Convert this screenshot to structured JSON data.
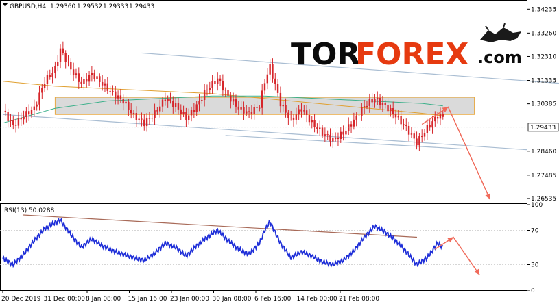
{
  "chart_data": [
    {
      "type": "candlestick",
      "symbol_label": "GBPUSD,H4",
      "ohlc": [
        "1.29360",
        "1.29532",
        "1.29333",
        "1.29433"
      ],
      "current_price": 1.29433,
      "current_price_label": "1.29433",
      "ylim": [
        1.2645,
        1.3455
      ],
      "y_ticks": [
        {
          "v": 1.34235,
          "label": "1.34235"
        },
        {
          "v": 1.3326,
          "label": "1.33260"
        },
        {
          "v": 1.3231,
          "label": "1.32310"
        },
        {
          "v": 1.31335,
          "label": "1.31335"
        },
        {
          "v": 1.30385,
          "label": "1.30385"
        },
        {
          "v": 1.2846,
          "label": "1.28460"
        },
        {
          "v": 1.27485,
          "label": "1.27485"
        },
        {
          "v": 1.26535,
          "label": "1.26535"
        }
      ],
      "x_labels": [
        "20 Dec 2019",
        "31 Dec 00:00",
        "8 Jan 08:00",
        "15 Jan 16:00",
        "23 Jan 00:00",
        "30 Jan 08:00",
        "6 Feb 16:00",
        "14 Feb 00:00",
        "21 Feb 08:00"
      ],
      "close_path": [
        [
          0,
          1.301
        ],
        [
          4,
          1.295
        ],
        [
          8,
          1.299
        ],
        [
          12,
          1.302
        ],
        [
          16,
          1.313
        ],
        [
          20,
          1.318
        ],
        [
          22,
          1.326
        ],
        [
          26,
          1.318
        ],
        [
          30,
          1.312
        ],
        [
          34,
          1.316
        ],
        [
          38,
          1.312
        ],
        [
          42,
          1.308
        ],
        [
          46,
          1.305
        ],
        [
          50,
          1.299
        ],
        [
          54,
          1.296
        ],
        [
          58,
          1.3
        ],
        [
          62,
          1.306
        ],
        [
          66,
          1.303
        ],
        [
          70,
          1.298
        ],
        [
          74,
          1.303
        ],
        [
          78,
          1.31
        ],
        [
          82,
          1.314
        ],
        [
          86,
          1.307
        ],
        [
          90,
          1.302
        ],
        [
          94,
          1.3
        ],
        [
          98,
          1.303
        ],
        [
          100,
          1.313
        ],
        [
          102,
          1.319
        ],
        [
          106,
          1.304
        ],
        [
          110,
          1.297
        ],
        [
          114,
          1.302
        ],
        [
          118,
          1.296
        ],
        [
          122,
          1.292
        ],
        [
          126,
          1.289
        ],
        [
          130,
          1.292
        ],
        [
          134,
          1.297
        ],
        [
          138,
          1.303
        ],
        [
          142,
          1.306
        ],
        [
          146,
          1.303
        ],
        [
          150,
          1.299
        ],
        [
          154,
          1.294
        ],
        [
          158,
          1.288
        ],
        [
          162,
          1.294
        ],
        [
          166,
          1.299
        ],
        [
          168,
          1.2985
        ]
      ],
      "ma_path": [
        [
          0,
          1.313
        ],
        [
          20,
          1.311
        ],
        [
          40,
          1.31
        ],
        [
          60,
          1.309
        ],
        [
          80,
          1.308
        ],
        [
          100,
          1.306
        ],
        [
          120,
          1.304
        ],
        [
          140,
          1.302
        ],
        [
          160,
          1.3
        ],
        [
          168,
          1.299
        ]
      ],
      "ma2_path": [
        [
          0,
          1.296
        ],
        [
          20,
          1.302
        ],
        [
          40,
          1.305
        ],
        [
          60,
          1.306
        ],
        [
          80,
          1.307
        ],
        [
          100,
          1.307
        ],
        [
          120,
          1.306
        ],
        [
          140,
          1.305
        ],
        [
          160,
          1.304
        ],
        [
          168,
          1.303
        ]
      ],
      "channel_upper": [
        [
          53,
          1.3245
        ],
        [
          215,
          1.312
        ]
      ],
      "channel_lower": [
        [
          0,
          1.2995
        ],
        [
          200,
          1.2852
        ]
      ],
      "channel_inner": [
        [
          85,
          1.291
        ],
        [
          176,
          1.2855
        ]
      ],
      "zone": [
        1.2995,
        1.3065
      ],
      "forecast": [
        [
          160,
          1.2955
        ],
        [
          170,
          1.3025
        ],
        [
          186,
          1.265
        ]
      ]
    },
    {
      "type": "line",
      "indicator_label": "RSI(13) 50.0288",
      "ylim": [
        0,
        100
      ],
      "y_ticks": [
        {
          "v": 100,
          "label": "100"
        },
        {
          "v": 70,
          "label": "70"
        },
        {
          "v": 30,
          "label": "30"
        },
        {
          "v": 0,
          "label": "0"
        }
      ],
      "rsi_path": [
        [
          0,
          37
        ],
        [
          4,
          30
        ],
        [
          8,
          42
        ],
        [
          12,
          58
        ],
        [
          16,
          72
        ],
        [
          20,
          79
        ],
        [
          22,
          82
        ],
        [
          26,
          65
        ],
        [
          30,
          50
        ],
        [
          34,
          60
        ],
        [
          38,
          52
        ],
        [
          42,
          46
        ],
        [
          46,
          42
        ],
        [
          50,
          38
        ],
        [
          54,
          35
        ],
        [
          58,
          43
        ],
        [
          62,
          55
        ],
        [
          66,
          50
        ],
        [
          70,
          40
        ],
        [
          74,
          52
        ],
        [
          78,
          62
        ],
        [
          82,
          70
        ],
        [
          86,
          58
        ],
        [
          90,
          48
        ],
        [
          94,
          42
        ],
        [
          98,
          55
        ],
        [
          100,
          70
        ],
        [
          102,
          80
        ],
        [
          106,
          55
        ],
        [
          110,
          38
        ],
        [
          114,
          45
        ],
        [
          118,
          40
        ],
        [
          122,
          33
        ],
        [
          126,
          30
        ],
        [
          130,
          35
        ],
        [
          134,
          46
        ],
        [
          138,
          62
        ],
        [
          142,
          75
        ],
        [
          146,
          68
        ],
        [
          150,
          58
        ],
        [
          154,
          45
        ],
        [
          158,
          30
        ],
        [
          162,
          38
        ],
        [
          166,
          55
        ],
        [
          168,
          50
        ]
      ],
      "trendline": [
        [
          0,
          88
        ],
        [
          200,
          62
        ]
      ],
      "forecast": [
        [
          165,
          48
        ],
        [
          172,
          62
        ],
        [
          182,
          18
        ]
      ]
    }
  ],
  "logo": {
    "tor": "TOR",
    "forex": "FOREX",
    "com": ".com",
    "forex_color": "#e63a10"
  },
  "colors": {
    "candle": "#d6252a",
    "ma": "#e0a030",
    "ma2": "#3bb08a",
    "channel": "#a9bdd2",
    "rsi": "#1e2ed8",
    "rsi_trend": "#a86a58",
    "forecast_arrow": "#f06a5a",
    "zone_fill": "#d3d3d3",
    "zone_stroke": "#e8a840"
  }
}
